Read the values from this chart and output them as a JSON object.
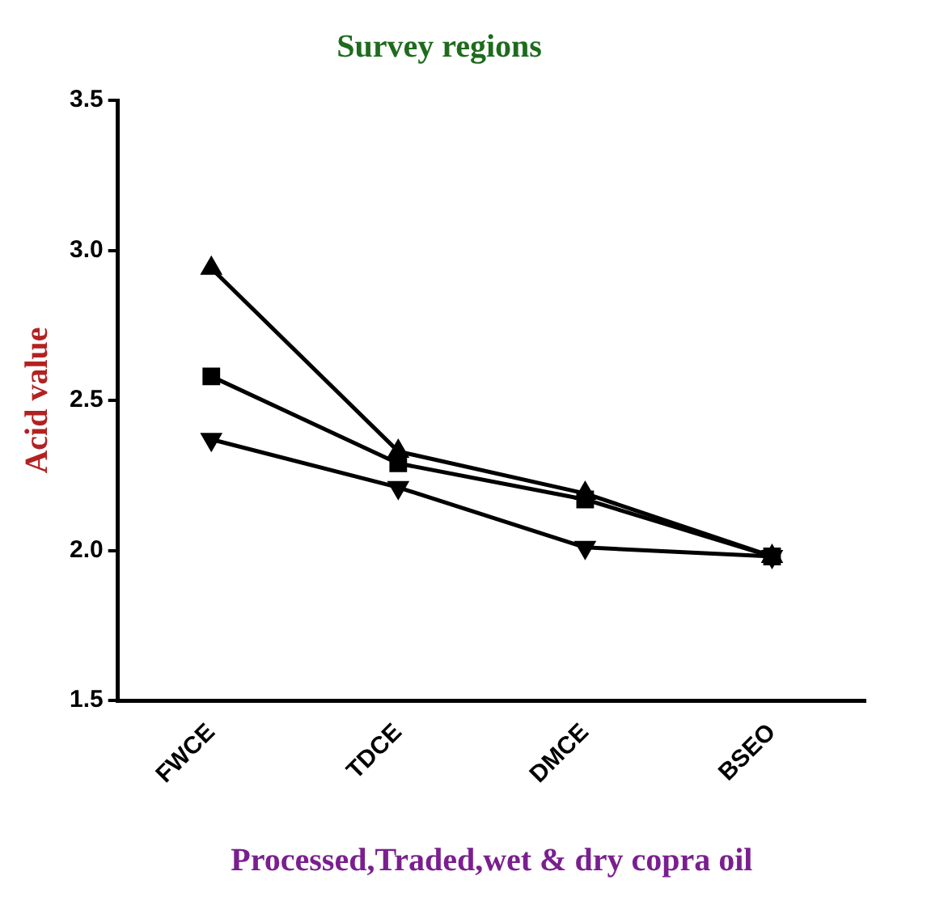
{
  "chart_data": {
    "type": "line",
    "title": "Survey regions",
    "xlabel": "Processed,Traded,wet & dry copra oil",
    "ylabel": "Acid value",
    "categories": [
      "FWCE",
      "TDCE",
      "DMCE",
      "BSEO"
    ],
    "series": [
      {
        "color": "#000000",
        "marker": "triangle",
        "values": [
          2.94,
          2.33,
          2.19,
          1.98
        ]
      },
      {
        "color": "#000000",
        "marker": "square",
        "values": [
          2.58,
          2.29,
          2.17,
          1.98
        ]
      },
      {
        "color": "#000000",
        "marker": "triangle-down",
        "values": [
          2.37,
          2.21,
          2.01,
          1.98
        ]
      }
    ],
    "ylim": [
      1.5,
      3.5
    ],
    "yticks": [
      1.5,
      {
        "value": 2,
        "label": "2.0"
      },
      2.5,
      {
        "value": 3,
        "label": "3.0"
      },
      3.5
    ],
    "grid": false,
    "legend": false,
    "line_style": "solid"
  }
}
